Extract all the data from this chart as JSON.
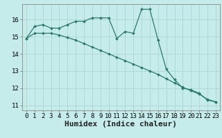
{
  "title": "",
  "xlabel": "Humidex (Indice chaleur)",
  "ylabel": "",
  "background_color": "#c5eceb",
  "plot_bg_color": "#c5eceb",
  "grid_color": "#aed4d3",
  "line_color": "#2a7a6a",
  "x_values": [
    0,
    1,
    2,
    3,
    4,
    5,
    6,
    7,
    8,
    9,
    10,
    11,
    12,
    13,
    14,
    15,
    16,
    17,
    18,
    19,
    20,
    21,
    22,
    23
  ],
  "line1_y": [
    14.9,
    15.6,
    15.7,
    15.5,
    15.5,
    15.7,
    15.9,
    15.9,
    16.1,
    16.1,
    16.1,
    14.9,
    15.3,
    15.2,
    16.6,
    16.6,
    14.8,
    13.1,
    12.5,
    12.0,
    11.9,
    11.7,
    11.3,
    11.2
  ],
  "line2_y": [
    14.9,
    15.2,
    15.2,
    15.2,
    15.1,
    14.95,
    14.8,
    14.6,
    14.4,
    14.2,
    14.0,
    13.8,
    13.6,
    13.4,
    13.2,
    13.0,
    12.8,
    12.55,
    12.3,
    12.05,
    11.85,
    11.65,
    11.35,
    11.2
  ],
  "ylim": [
    10.7,
    16.9
  ],
  "xlim": [
    -0.5,
    23.5
  ],
  "yticks": [
    11,
    12,
    13,
    14,
    15,
    16
  ],
  "xticks": [
    0,
    1,
    2,
    3,
    4,
    5,
    6,
    7,
    8,
    9,
    10,
    11,
    12,
    13,
    14,
    15,
    16,
    17,
    18,
    19,
    20,
    21,
    22,
    23
  ],
  "tick_fontsize": 6.5,
  "xlabel_fontsize": 8.0,
  "marker_size": 2.0,
  "line_width": 0.9
}
